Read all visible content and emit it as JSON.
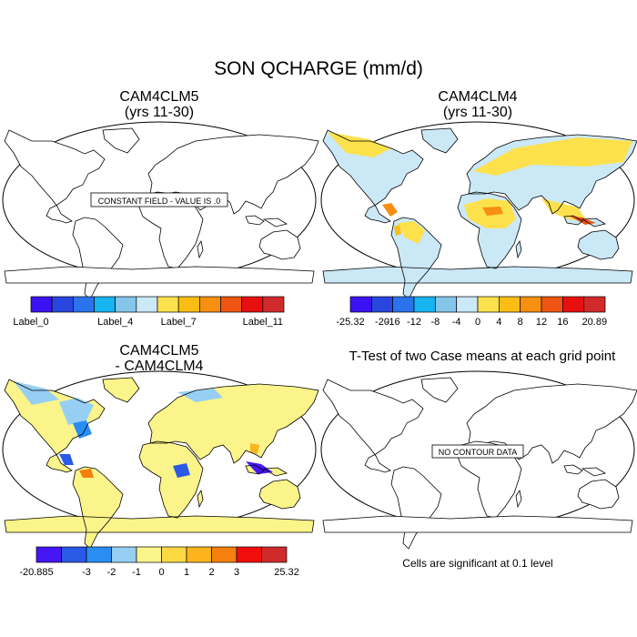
{
  "page_title": "SON QCHARGE (mm/d)",
  "colors": {
    "ocean": "#ffffff",
    "coast": "#000000",
    "scale": [
      "#3b12f2",
      "#2846de",
      "#2b73ec",
      "#18b4f2",
      "#85c5ea",
      "#cbe8f7",
      "#fce14d",
      "#fbbd14",
      "#f78f11",
      "#ee5512",
      "#e70f0f",
      "#d12a2b"
    ],
    "diff_scale": [
      "#4616f5",
      "#2b5ae6",
      "#2a8df2",
      "#97cff4",
      "#fbf48a",
      "#fcd843",
      "#fbb41d",
      "#f4800d",
      "#f20d0d",
      "#d12a2b"
    ]
  },
  "panels": [
    {
      "id": "cam4clm5",
      "title_line1": "CAM4CLM5",
      "title_line2": "(yrs 11-30)",
      "message": "CONSTANT FIELD - VALUE IS .0",
      "colorbar": {
        "labels": [
          "Label_0",
          "Label_4",
          "Label_7",
          "Label_11"
        ]
      }
    },
    {
      "id": "cam4clm4",
      "title_line1": "CAM4CLM4",
      "title_line2": "(yrs 11-30)",
      "colorbar": {
        "labels": [
          "-25.32",
          "-20",
          "-16",
          "-12",
          "-8",
          "-4",
          "0",
          "4",
          "8",
          "12",
          "16",
          "20.89"
        ]
      }
    },
    {
      "id": "difference",
      "title_line1": "CAM4CLM5",
      "title_line2": "- CAM4CLM4",
      "colorbar": {
        "labels": [
          "-20.885",
          "-3",
          "-2",
          "-1",
          "0",
          "1",
          "2",
          "3",
          "25.32"
        ]
      }
    },
    {
      "id": "ttest",
      "title_line1": "T-Test of two Case means at each grid point",
      "message": "NO CONTOUR DATA",
      "footnote": "Cells are significant at 0.1 level"
    }
  ],
  "chart_data": [
    {
      "type": "heatmap",
      "title": "CAM4CLM5 (yrs 11-30)",
      "projection": "Robinson world map",
      "field": "constant",
      "value": 0.0,
      "legend_labels": [
        "Label_0",
        "Label_4",
        "Label_7",
        "Label_11"
      ]
    },
    {
      "type": "heatmap",
      "title": "CAM4CLM4 (yrs 11-30)",
      "projection": "Robinson world map",
      "contour_levels": [
        -25.32,
        -20,
        -16,
        -12,
        -8,
        -4,
        0,
        4,
        8,
        12,
        16,
        20.89
      ],
      "approx_regional_values": {
        "North America": 2,
        "Alaska & northern Canada": 4,
        "Central America": 10,
        "Amazon": 6,
        "Southern South America": 0,
        "Europe": 2,
        "Northern Siberia": 3,
        "Sahara": 2,
        "West & Central Africa": 8,
        "Southern Africa": 0,
        "India": 5,
        "Southeast Asia": 10,
        "Maritime Continent": 14,
        "Australia": 0
      }
    },
    {
      "type": "heatmap",
      "title": "CAM4CLM5 - CAM4CLM4",
      "projection": "Robinson world map",
      "contour_levels": [
        -20.885,
        -3,
        -2,
        -1,
        0,
        1,
        2,
        3,
        25.32
      ],
      "approx_regional_values": {
        "Alaska": -1,
        "Northern Canada": 0.5,
        "Eastern North America": -2,
        "Central America": -4,
        "Amazon": 0.5,
        "Europe": 0.5,
        "Siberia": 0.5,
        "West Africa": 1,
        "Central Africa": -4,
        "India": 0.5,
        "Southeast Asia": -2,
        "Maritime Continent": -4,
        "Australia": 0.5
      }
    },
    {
      "type": "heatmap",
      "title": "T-Test of two Case means at each grid point",
      "projection": "Robinson world map",
      "field": "empty"
    }
  ]
}
